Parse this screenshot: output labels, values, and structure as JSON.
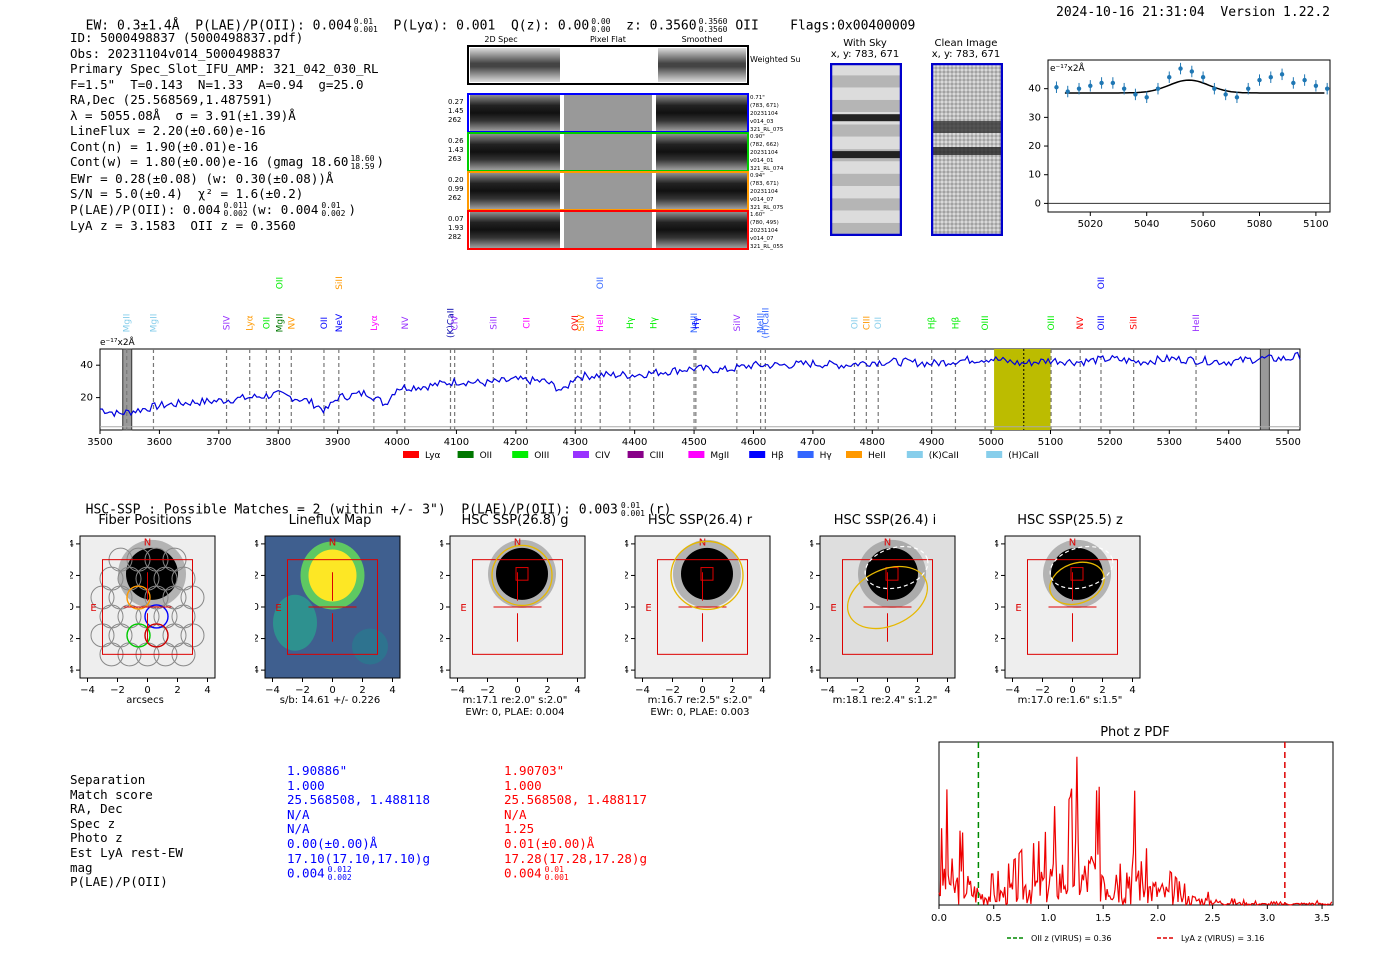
{
  "header": {
    "ew": "EW: 0.3±1.4Å",
    "plae": "P(LAE)/P(OII): 0.004",
    "plae_sup": "0.01",
    "plae_sub": "0.001",
    "plya": "P(Lyα): 0.001",
    "qz": "Q(z): 0.00",
    "qz_sup": "0.00",
    "qz_sub": "0.00",
    "z": "z: 0.3560",
    "z_sup": "0.3560",
    "z_sub": "0.3560",
    "z_line": "OII",
    "flags": "Flags:0x00400009",
    "timestamp": "2024-10-16 21:31:04",
    "version": "Version 1.22.2"
  },
  "info": {
    "id": "ID: 5000498837 (5000498837.pdf)",
    "obs": "Obs: 20231104v014_5000498837",
    "primary": "Primary Spec_Slot_IFU_AMP: 321_042_030_RL",
    "params": "F=1.5\"  T=0.143  N=1.33  A=0.94  g=25.0",
    "radec": "RA,Dec (25.568569,1.487591)",
    "lambda": "λ = 5055.08Å  σ = 3.91(±1.39)Å",
    "lineflux": "LineFlux = 2.20(±0.60)e-16",
    "contn": "Cont(n) = 1.90(±0.01)e-16",
    "contw": "Cont(w) = 1.80(±0.00)e-16 (gmag 18.60",
    "contw_sup": "18.60",
    "contw_sub": "18.59",
    "contw_end": ")",
    "ewr": "EWr = 0.28(±0.08) (w: 0.30(±0.08))Å",
    "sn": "S/N = 5.0(±0.4)  χ² = 1.6(±0.2)",
    "plae": "P(LAE)/P(OII): 0.004",
    "plae_sup": "0.011",
    "plae_sub": "0.002",
    "plae_w": "(w: 0.004",
    "plae_w_sup": "0.01",
    "plae_w_sub": "0.002",
    "plae_w_end": ")",
    "z": "LyA z = 3.1583  OII z = 0.3560"
  },
  "cutouts": {
    "headers": [
      "2D Spec",
      "Pixel Flat",
      "Smoothed"
    ],
    "weighted_label": "Weighted Sum",
    "rows": [
      {
        "left": [
          "0.27",
          "1.45",
          "262"
        ],
        "right": [
          "0.71\"",
          "(783, 671)",
          "20231104",
          "v014_03",
          "321_RL_075"
        ],
        "color": "#0000ff"
      },
      {
        "left": [
          "0.26",
          "1.43",
          "263"
        ],
        "right": [
          "0.90\"",
          "(782, 662)",
          "20231104",
          "v014_01",
          "321_RL_074"
        ],
        "color": "#00cc00"
      },
      {
        "left": [
          "0.20",
          "0.99",
          "262"
        ],
        "right": [
          "0.94\"",
          "(783, 671)",
          "20231104",
          "v014_07",
          "321_RL_075"
        ],
        "color": "#ff9900"
      },
      {
        "left": [
          "0.07",
          "1.93",
          "282"
        ],
        "right": [
          "1.60\"",
          "(780, 495)",
          "20231104",
          "v014_07",
          "321_RL_055"
        ],
        "color": "#ff0000"
      }
    ]
  },
  "sky": {
    "title": "With Sky",
    "coords": "x, y: 783, 671"
  },
  "clean": {
    "title": "Clean Image",
    "coords": "x, y: 783, 671"
  },
  "zoom_chart": {
    "ylabel": "e⁻¹⁷x2Å",
    "xticks": [
      "5020",
      "5040",
      "5060",
      "5080",
      "5100"
    ],
    "yticks": [
      "0",
      "10",
      "20",
      "30",
      "40"
    ]
  },
  "spectrum": {
    "ylabel": "e⁻¹⁷x2Å",
    "xticks": [
      "3500",
      "3600",
      "3700",
      "3800",
      "3900",
      "4000",
      "4100",
      "4200",
      "4300",
      "4400",
      "4500",
      "4600",
      "4700",
      "4800",
      "4900",
      "5000",
      "5100",
      "5200",
      "5300",
      "5400",
      "5500"
    ],
    "yticks": [
      "20",
      "40"
    ],
    "legend": [
      {
        "label": "Lyα",
        "color": "#ff0000"
      },
      {
        "label": "OII",
        "color": "#007700"
      },
      {
        "label": "OIII",
        "color": "#00ee00"
      },
      {
        "label": "CIV",
        "color": "#9933ff"
      },
      {
        "label": "CIII",
        "color": "#880088"
      },
      {
        "label": "MgII",
        "color": "#ff00ff"
      },
      {
        "label": "Hβ",
        "color": "#0000ff"
      },
      {
        "label": "Hγ",
        "color": "#3366ff"
      },
      {
        "label": "HeII",
        "color": "#ff9900"
      },
      {
        "label": "(K)CaII",
        "color": "#87ceeb"
      },
      {
        "label": "(H)CaII",
        "color": "#87ceeb"
      }
    ],
    "lines": [
      {
        "label": "MgII",
        "x": 3545,
        "color": "#87ceeb"
      },
      {
        "label": "MgII",
        "x": 3590,
        "color": "#87ceeb"
      },
      {
        "label": "SIV",
        "x": 3713,
        "color": "#9933ff"
      },
      {
        "label": "Lyα",
        "x": 3752,
        "color": "#ff9900"
      },
      {
        "label": "OII",
        "x": 3780,
        "color": "#00ee00"
      },
      {
        "label": "MgII",
        "x": 3802,
        "color": "#007700"
      },
      {
        "label": "OII",
        "x": 3802,
        "color": "#00ee00"
      },
      {
        "label": "NV",
        "x": 3822,
        "color": "#ff9900"
      },
      {
        "label": "OII",
        "x": 3877,
        "color": "#0000ff"
      },
      {
        "label": "NeV",
        "x": 3902,
        "color": "#0000ff"
      },
      {
        "label": "SiII",
        "x": 3902,
        "color": "#ff9900"
      },
      {
        "label": "Lyα",
        "x": 3961,
        "color": "#ff00ff"
      },
      {
        "label": "NV",
        "x": 4013,
        "color": "#9933ff"
      },
      {
        "label": "(K)CaII",
        "x": 4090,
        "color": "#0000aa"
      },
      {
        "label": "CIV",
        "x": 4097,
        "color": "#9933ff"
      },
      {
        "label": "SiII",
        "x": 4162,
        "color": "#9933ff"
      },
      {
        "label": "CII",
        "x": 4218,
        "color": "#ff00ff"
      },
      {
        "label": "OVI",
        "x": 4300,
        "color": "#ff0000"
      },
      {
        "label": "SiIV",
        "x": 4310,
        "color": "#ff9900"
      },
      {
        "label": "HeII",
        "x": 4342,
        "color": "#ff00ff"
      },
      {
        "label": "OII",
        "x": 4342,
        "color": "#3366ff"
      },
      {
        "label": "Hγ",
        "x": 4392,
        "color": "#00ee00"
      },
      {
        "label": "Hγ",
        "x": 4432,
        "color": "#00ee00"
      },
      {
        "label": "NeIII",
        "x": 4500,
        "color": "#3366ff"
      },
      {
        "label": "Hγ",
        "x": 4503,
        "color": "#0000ff"
      },
      {
        "label": "SiIV",
        "x": 4572,
        "color": "#9933ff"
      },
      {
        "label": "NeIII",
        "x": 4612,
        "color": "#3366ff"
      },
      {
        "label": "(H)CaII",
        "x": 4620,
        "color": "#3366ff"
      },
      {
        "label": "OII",
        "x": 4770,
        "color": "#87ceeb"
      },
      {
        "label": "CIII",
        "x": 4790,
        "color": "#ff9900"
      },
      {
        "label": "OII",
        "x": 4810,
        "color": "#87ceeb"
      },
      {
        "label": "Hβ",
        "x": 4900,
        "color": "#00ee00"
      },
      {
        "label": "Hβ",
        "x": 4940,
        "color": "#00ee00"
      },
      {
        "label": "OIII",
        "x": 4990,
        "color": "#00ee00"
      },
      {
        "label": "OIII",
        "x": 5101,
        "color": "#00ee00"
      },
      {
        "label": "NV",
        "x": 5150,
        "color": "#ff0000"
      },
      {
        "label": "OIII",
        "x": 5185,
        "color": "#0000ff"
      },
      {
        "label": "OII",
        "x": 5185,
        "color": "#0000ff"
      },
      {
        "label": "SiII",
        "x": 5240,
        "color": "#ff0000"
      },
      {
        "label": "HeII",
        "x": 5345,
        "color": "#9933ff"
      }
    ]
  },
  "hsc": {
    "match_line": "HSC-SSP : Possible Matches = 2 (within +/- 3\")  P(LAE)/P(OII): 0.003",
    "match_sup": "0.01",
    "match_sub": "0.001",
    "match_end": "(r)",
    "panels": [
      {
        "title": "Fiber Positions",
        "xlabel": "arcsecs",
        "sub": ""
      },
      {
        "title": "Lineflux Map",
        "xlabel": "s/b: 14.61 +/- 0.226",
        "sub": ""
      },
      {
        "title": "HSC SSP(26.8) g",
        "xlabel": "m:17.1  re:2.0\"  s:2.0\"",
        "sub": "EWr: 0, PLAE: 0.004"
      },
      {
        "title": "HSC SSP(26.4) r",
        "xlabel": "m:16.7  re:2.5\"  s:2.0\"",
        "sub": "EWr: 0, PLAE: 0.003"
      },
      {
        "title": "HSC SSP(26.4) i",
        "xlabel": "m:18.1  re:2.4\"  s:1.2\"",
        "sub": ""
      },
      {
        "title": "HSC SSP(25.5) z",
        "xlabel": "m:17.0  re:1.6\"  s:1.5\"",
        "sub": ""
      }
    ],
    "ticks": [
      "−4",
      "−2",
      "0",
      "2",
      "4"
    ],
    "marker_n": "N",
    "marker_e": "E"
  },
  "table": {
    "labels": [
      "Separation",
      "Match score",
      "RA, Dec",
      "Spec z",
      "Photo z",
      "Est LyA rest-EW",
      "mag",
      "P(LAE)/P(OII)"
    ],
    "col1": [
      "1.90886\"",
      "1.000",
      "25.568508, 1.488118",
      "N/A",
      "N/A",
      "0.00(±0.00)Å",
      "17.10(17.10,17.10)g",
      "0.004"
    ],
    "col1_sup": "0.012",
    "col1_sub": "0.002",
    "col2": [
      "1.90703\"",
      "1.000",
      "25.568508, 1.488117",
      "N/A",
      "1.25",
      "0.01(±0.00)Å",
      "17.28(17.28,17.28)g",
      "0.004"
    ],
    "col2_sup": "0.01",
    "col2_sub": "0.001",
    "col1_color": "#0000ff",
    "col2_color": "#ff0000"
  },
  "chart_data": [
    {
      "type": "line",
      "title": "",
      "xlabel": "",
      "ylabel": "e⁻¹⁷x2Å",
      "xlim": [
        3500,
        5520
      ],
      "ylim": [
        0,
        50
      ],
      "highlight_range": [
        5005,
        5100
      ],
      "marker_x": 5055,
      "series": [
        {
          "name": "spectrum",
          "x": [
            3500,
            3530,
            3560,
            3600,
            3650,
            3700,
            3750,
            3800,
            3850,
            3880,
            3900,
            3950,
            3980,
            4000,
            4050,
            4100,
            4150,
            4200,
            4250,
            4280,
            4300,
            4350,
            4400,
            4450,
            4500,
            4550,
            4600,
            4650,
            4700,
            4750,
            4800,
            4850,
            4900,
            4950,
            5000,
            5050,
            5100,
            5150,
            5200,
            5250,
            5300,
            5350,
            5400,
            5450,
            5500,
            5520
          ],
          "values": [
            13,
            10,
            12,
            15,
            17,
            18,
            20,
            22,
            18,
            12,
            20,
            23,
            16,
            26,
            27,
            30,
            29,
            31,
            30,
            24,
            33,
            34,
            34,
            36,
            38,
            37,
            40,
            40,
            41,
            40,
            42,
            42,
            41,
            43,
            44,
            41,
            43,
            42,
            44,
            42,
            44,
            43,
            42,
            44,
            44,
            46
          ]
        }
      ]
    },
    {
      "type": "scatter",
      "title": "",
      "xlabel": "",
      "ylabel": "e⁻¹⁷x2Å",
      "xlim": [
        5005,
        5105
      ],
      "ylim": [
        -3,
        50
      ],
      "x": [
        5008,
        5012,
        5016,
        5020,
        5024,
        5028,
        5032,
        5036,
        5040,
        5044,
        5048,
        5052,
        5056,
        5060,
        5064,
        5068,
        5072,
        5076,
        5080,
        5084,
        5088,
        5092,
        5096,
        5100,
        5104
      ],
      "y": [
        40.5,
        39,
        40,
        41,
        42,
        42,
        40,
        38,
        37,
        40,
        44,
        47,
        46,
        44,
        40,
        38,
        37,
        40,
        43,
        44,
        45,
        42,
        43,
        41,
        40
      ],
      "model": {
        "continuum": 38.5,
        "peak": 43,
        "center": 5055
      }
    },
    {
      "type": "line",
      "title": "Phot z PDF",
      "xlabel": "",
      "ylabel": "",
      "xlim": [
        0,
        3.6
      ],
      "xticks": [
        "0.0",
        "0.5",
        "1.0",
        "1.5",
        "2.0",
        "2.5",
        "3.0",
        "3.5"
      ],
      "legend": [
        {
          "label": "OII z (VIRUS) = 0.36",
          "color": "#008800",
          "x": 0.36
        },
        {
          "label": "LyA z (VIRUS) = 3.16",
          "color": "#dd0000",
          "x": 3.16
        }
      ],
      "series": [
        {
          "name": "pdf",
          "x": [
            0.0,
            0.05,
            0.08,
            0.12,
            0.2,
            0.3,
            0.4,
            0.5,
            0.6,
            0.7,
            0.8,
            0.9,
            1.0,
            1.05,
            1.1,
            1.2,
            1.27,
            1.3,
            1.4,
            1.5,
            1.55,
            1.6,
            1.7,
            1.8,
            1.9,
            2.0,
            2.2,
            2.4,
            2.6,
            2.8,
            3.0,
            3.2,
            3.4,
            3.6
          ],
          "values": [
            0.4,
            0.6,
            0.8,
            0.3,
            0.5,
            0.3,
            0.2,
            0.2,
            0.25,
            0.3,
            0.4,
            0.4,
            0.5,
            0.65,
            0.55,
            0.7,
            1.0,
            0.5,
            0.7,
            0.8,
            0.5,
            0.8,
            0.65,
            0.75,
            0.35,
            0.3,
            0.15,
            0.1,
            0.05,
            0.03,
            0.02,
            0.02,
            0.03,
            0.02
          ]
        }
      ]
    }
  ]
}
